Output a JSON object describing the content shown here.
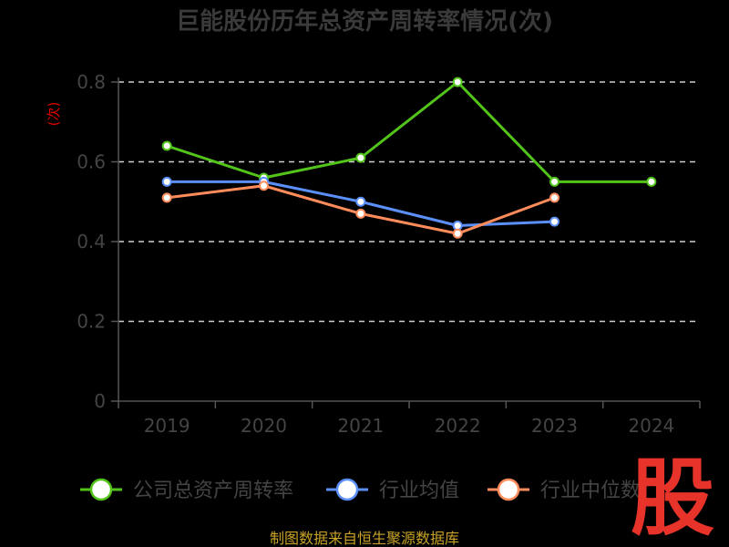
{
  "chart_data": {
    "type": "line",
    "title": "巨能股份历年总资产周转率情况(次)",
    "ylabel": "(次)",
    "categories": [
      "2019",
      "2020",
      "2021",
      "2022",
      "2023",
      "2024"
    ],
    "ylim": [
      0,
      0.8
    ],
    "yticks": [
      "0",
      "0.2",
      "0.4",
      "0.6",
      "0.8"
    ],
    "grid": true,
    "legend_position": "bottom",
    "series": [
      {
        "name": "公司总资产周转率",
        "color": "#52c41a",
        "values": [
          0.64,
          0.56,
          0.61,
          0.8,
          0.55,
          0.55
        ]
      },
      {
        "name": "行业均值",
        "color": "#5b8ff9",
        "values": [
          0.55,
          0.55,
          0.5,
          0.44,
          0.45,
          null
        ]
      },
      {
        "name": "行业中位数",
        "color": "#ff8c5a",
        "values": [
          0.51,
          0.54,
          0.47,
          0.42,
          0.51,
          null
        ]
      }
    ]
  },
  "source": "制图数据来自恒生聚源数据库",
  "logo_text": "股"
}
